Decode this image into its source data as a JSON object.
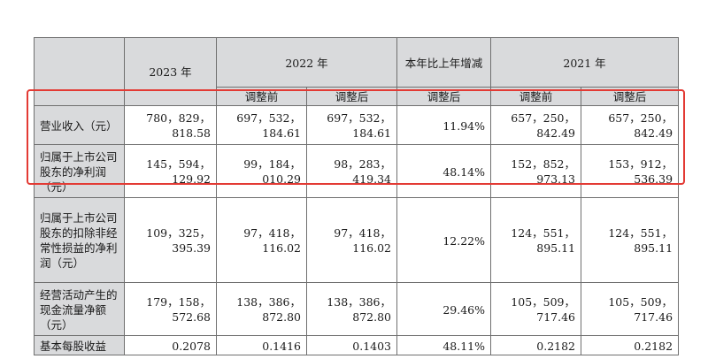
{
  "header": {
    "year_2023": "2023 年",
    "year_2022": "2022 年",
    "change": "本年比上年增减",
    "year_2021": "2021 年",
    "before": "调整前",
    "after": "调整后",
    "after_change": "调整后"
  },
  "rows": [
    {
      "label": "营业收入（元）",
      "v2023": "780，829，818.58",
      "v2022_before": "697，532，184.61",
      "v2022_after": "697，532，184.61",
      "change": "11.94%",
      "v2021_before": "657，250，842.49",
      "v2021_after": "657，250，842.49"
    },
    {
      "label": "归属于上市公司股东的净利润（元）",
      "v2023": "145，594，129.92",
      "v2022_before": "99，184，010.29",
      "v2022_after": "98，283，419.34",
      "change": "48.14%",
      "v2021_before": "152，852，973.13",
      "v2021_after": "153，912，536.39"
    },
    {
      "label": "归属于上市公司股东的扣除非经常性损益的净利润（元）",
      "v2023": "109，325，395.39",
      "v2022_before": "97，418，116.02",
      "v2022_after": "97，418，116.02",
      "change": "12.22%",
      "v2021_before": "124，551，895.11",
      "v2021_after": "124，551，895.11"
    },
    {
      "label": "经营活动产生的现金流量净额（元）",
      "v2023": "179，158，572.68",
      "v2022_before": "138，386，872.80",
      "v2022_after": "138，386，872.80",
      "change": "29.46%",
      "v2021_before": "105，509，717.46",
      "v2021_after": "105，509，717.46"
    },
    {
      "label": "基本每股收益",
      "v2023": "0.2078",
      "v2022_before": "0.1416",
      "v2022_after": "0.1403",
      "change": "48.11%",
      "v2021_before": "0.2182",
      "v2021_after": "0.2182"
    }
  ],
  "highlight_color": "#e33a34"
}
